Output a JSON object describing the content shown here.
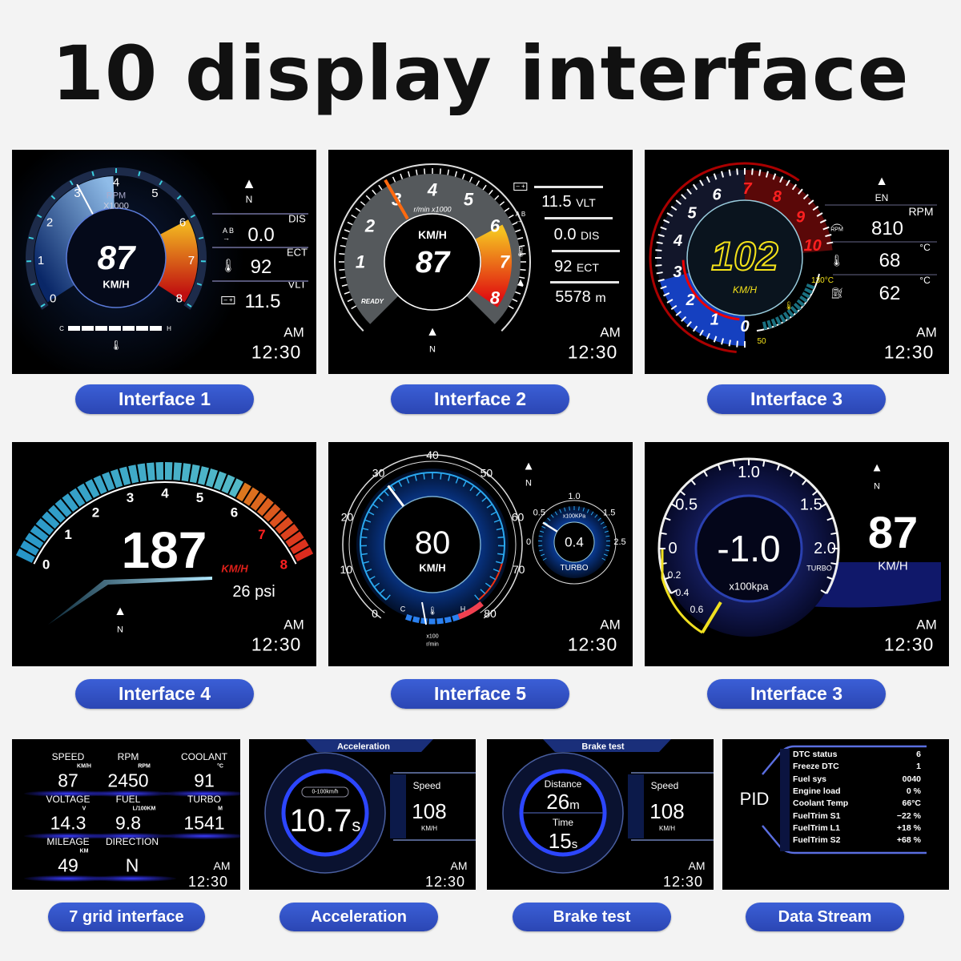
{
  "title": "10 display interface",
  "colors": {
    "pill": "#2f4fc4",
    "panel_bg": "#000000",
    "accent_blue": "#1e6cff",
    "accent_red": "#e0201a",
    "accent_yellow": "#f4e21a"
  },
  "panels": {
    "i1": {
      "gauge_labels": [
        "0",
        "1",
        "2",
        "3",
        "4",
        "5",
        "6",
        "7",
        "8"
      ],
      "rpm_label": "RPM",
      "rpm_unit": "X1000",
      "speed": "87",
      "speed_unit": "KM/H",
      "compass": "N",
      "dis_label": "DIS",
      "dis_value": "0.0",
      "ect_label": "ECT",
      "ect_value": "92",
      "vlt_label": "VLT",
      "vlt_value": "11.5",
      "temp_cold": "C",
      "temp_hot": "H",
      "am": "AM",
      "time": "12:30",
      "icons": [
        "compass-arrow-icon",
        "trip-ab-icon",
        "coolant-temp-icon",
        "battery-icon"
      ]
    },
    "i2": {
      "gauge_labels": [
        "1",
        "2",
        "3",
        "4",
        "5",
        "6",
        "7",
        "8"
      ],
      "rpm_unit": "r/min x1000",
      "speed_unit": "KM/H",
      "speed": "87",
      "ready": "READY",
      "compass": "N",
      "vlt_value": "11.5",
      "vlt_label": "VLT",
      "dis_value": "0.0",
      "dis_label": "DIS",
      "ect_value": "92",
      "ect_label": "ECT",
      "alt_value": "5578",
      "alt_unit": "m",
      "am": "AM",
      "time": "12:30",
      "needle_rpm": 3
    },
    "i3": {
      "gauge_labels": [
        "0",
        "1",
        "2",
        "3",
        "4",
        "5",
        "6",
        "7",
        "8",
        "9",
        "10"
      ],
      "speed": "102",
      "speed_unit": "KM/H",
      "temp_max": "130°C",
      "temp_min": "50",
      "compass": "EN",
      "rpm_unit": "RPM",
      "rpm_icon_label": "RPM",
      "rpm_value": "810",
      "coolant_unit": "°C",
      "coolant_value": "68",
      "oil_unit": "°C",
      "oil_value": "62",
      "am": "AM",
      "time": "12:30"
    },
    "i4": {
      "gauge_labels": [
        "0",
        "1",
        "2",
        "3",
        "4",
        "5",
        "6",
        "7",
        "8"
      ],
      "speed": "187",
      "speed_unit": "KM/H",
      "boost": "26 psi",
      "compass": "N",
      "am": "AM",
      "time": "12:30"
    },
    "i5": {
      "gauge_labels": [
        "0",
        "10",
        "20",
        "30",
        "40",
        "50",
        "60",
        "70",
        "80"
      ],
      "speed": "80",
      "speed_unit": "KM/H",
      "rpm_unit_1": "x100",
      "rpm_unit_2": "r/min",
      "temp_cold": "C",
      "temp_hot": "H",
      "turbo_labels": [
        "0",
        "0.5",
        "1.0",
        "1.5",
        "2.5"
      ],
      "turbo_unit": "x100KPa",
      "turbo_value": "0.4",
      "turbo_label": "TURBO",
      "compass": "N",
      "am": "AM",
      "time": "12:30",
      "needle_speed": 30
    },
    "i6": {
      "gauge_labels": [
        "0",
        "0.5",
        "1.0",
        "1.5",
        "2.0"
      ],
      "inner_labels": [
        "0.2",
        "0.4",
        "0.6"
      ],
      "boost": "-1.0",
      "boost_unit": "x100kpa",
      "turbo_label": "TURBO",
      "speed": "87",
      "speed_unit": "KM/H",
      "compass": "N",
      "am": "AM",
      "time": "12:30"
    },
    "grid": {
      "cells": [
        {
          "label": "SPEED",
          "unit": "KM/H",
          "value": "87"
        },
        {
          "label": "RPM",
          "unit": "RPM",
          "value": "2450"
        },
        {
          "label": "COOLANT",
          "unit": "°C",
          "value": "91"
        },
        {
          "label": "VOLTAGE",
          "unit": "V",
          "value": "14.3"
        },
        {
          "label": "FUEL",
          "unit": "L/100KM",
          "value": "9.8"
        },
        {
          "label": "TURBO",
          "unit": "M",
          "value": "1541"
        },
        {
          "label": "MILEAGE",
          "unit": "KM",
          "value": "49"
        },
        {
          "label": "DIRECTION",
          "unit": "",
          "value": "N"
        }
      ],
      "am": "AM",
      "time": "12:30"
    },
    "accel": {
      "header": "Acceleration",
      "range": "0-100km/h",
      "value": "10.7",
      "value_unit": "s",
      "speed_label": "Speed",
      "speed": "108",
      "speed_unit": "KM/H",
      "am": "AM",
      "time": "12:30"
    },
    "brake": {
      "header": "Brake test",
      "distance_label": "Distance",
      "distance": "26",
      "distance_unit": "m",
      "time_label": "Time",
      "time_value": "15",
      "time_unit": "s",
      "speed_label": "Speed",
      "speed": "108",
      "speed_unit": "KM/H",
      "am": "AM",
      "time": "12:30"
    },
    "pid": {
      "label": "PID",
      "rows": [
        {
          "name": "DTC status",
          "value": "6"
        },
        {
          "name": "Freeze DTC",
          "value": "1"
        },
        {
          "name": "Fuel sys",
          "value": "0040"
        },
        {
          "name": "Engine load",
          "value": "0  %"
        },
        {
          "name": "Coolant Temp",
          "value": "66°C"
        },
        {
          "name": "FuelTrim S1",
          "value": "−22  %"
        },
        {
          "name": "FuelTrim L1",
          "value": "+18  %"
        },
        {
          "name": "FuelTrim S2",
          "value": "+68  %"
        }
      ]
    }
  },
  "labels": [
    "Interface 1",
    "Interface 2",
    "Interface 3",
    "Interface 4",
    "Interface 5",
    "Interface 3",
    "7 grid interface",
    "Acceleration",
    "Brake test",
    "Data Stream"
  ]
}
